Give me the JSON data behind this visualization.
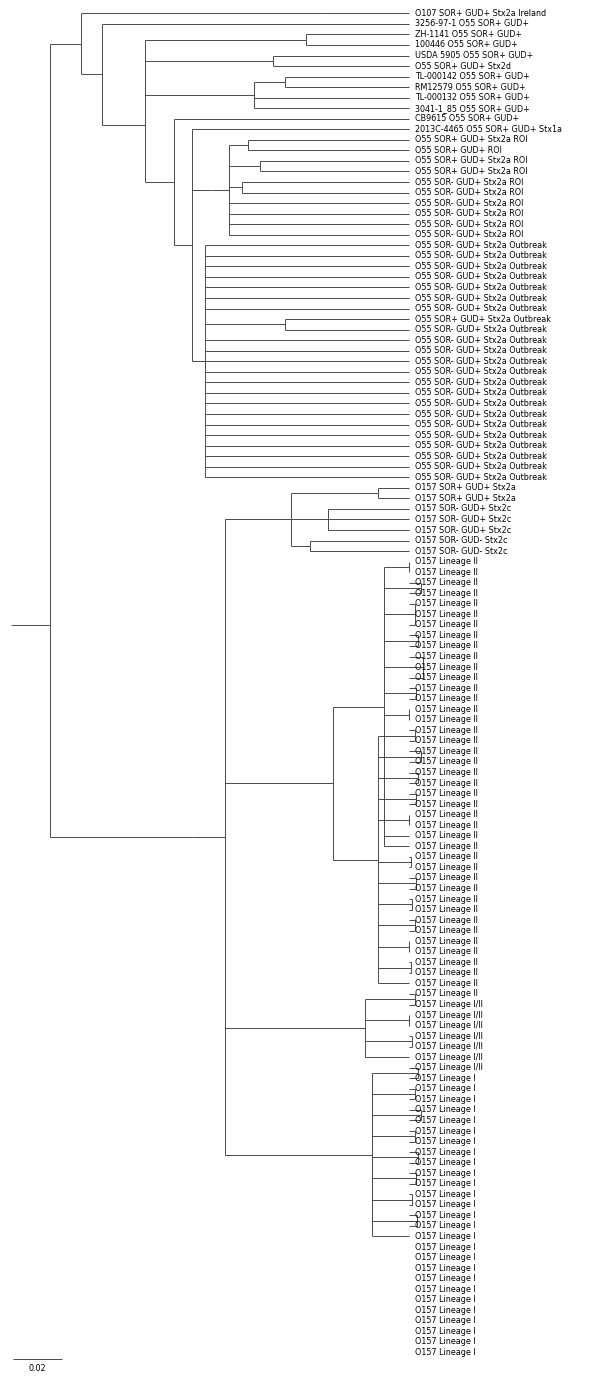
{
  "figsize": [
    6.0,
    13.78
  ],
  "dpi": 100,
  "background_color": "#ffffff",
  "line_color": "#4a4a4a",
  "text_color": "#000000",
  "font_size": 5.8,
  "scale_bar_label": "0.02",
  "leaves": [
    "O107 SOR+ GUD+ Stx2a Ireland",
    "3256-97-1 O55 SOR+ GUD+",
    "ZH-1141 O55 SOR+ GUD+",
    "100446 O55 SOR+ GUD+",
    "USDA 5905 O55 SOR+ GUD+",
    "O55 SOR+ GUD+ Stx2d",
    "TL-000142 O55 SOR+ GUD+",
    "RM12579 O55 SOR+ GUD+",
    "TL-000132 O55 SOR+ GUD+",
    "3041-1_85 O55 SOR+ GUD+",
    "CB9615 O55 SOR+ GUD+",
    "2013C-4465 O55 SOR+ GUD+ Stx1a",
    "O55 SOR+ GUD+ Stx2a ROI",
    "O55 SOR+ GUD+ ROI",
    "O55 SOR+ GUD+ Stx2a ROI",
    "O55 SOR+ GUD+ Stx2a ROI",
    "O55 SOR- GUD+ Stx2a ROI",
    "O55 SOR- GUD+ Stx2a ROI",
    "O55 SOR- GUD+ Stx2a ROI",
    "O55 SOR- GUD+ Stx2a ROI",
    "O55 SOR- GUD+ Stx2a ROI",
    "O55 SOR- GUD+ Stx2a ROI",
    "O55 SOR- GUD+ Stx2a Outbreak",
    "O55 SOR- GUD+ Stx2a Outbreak",
    "O55 SOR- GUD+ Stx2a Outbreak",
    "O55 SOR- GUD+ Stx2a Outbreak",
    "O55 SOR- GUD+ Stx2a Outbreak",
    "O55 SOR- GUD+ Stx2a Outbreak",
    "O55 SOR- GUD+ Stx2a Outbreak",
    "O55 SOR+ GUD+ Stx2a Outbreak",
    "O55 SOR- GUD+ Stx2a Outbreak",
    "O55 SOR- GUD+ Stx2a Outbreak",
    "O55 SOR- GUD+ Stx2a Outbreak",
    "O55 SOR- GUD+ Stx2a Outbreak",
    "O55 SOR- GUD+ Stx2a Outbreak",
    "O55 SOR- GUD+ Stx2a Outbreak",
    "O55 SOR- GUD+ Stx2a Outbreak",
    "O55 SOR- GUD+ Stx2a Outbreak",
    "O55 SOR- GUD+ Stx2a Outbreak",
    "O55 SOR- GUD+ Stx2a Outbreak",
    "O55 SOR- GUD+ Stx2a Outbreak",
    "O55 SOR- GUD+ Stx2a Outbreak",
    "O55 SOR- GUD+ Stx2a Outbreak",
    "O55 SOR- GUD+ Stx2a Outbreak",
    "O55 SOR- GUD+ Stx2a Outbreak",
    "O157 SOR+ GUD+ Stx2a",
    "O157 SOR+ GUD+ Stx2a",
    "O157 SOR- GUD+ Stx2c",
    "O157 SOR- GUD+ Stx2c",
    "O157 SOR- GUD+ Stx2c",
    "O157 SOR- GUD- Stx2c",
    "O157 SOR- GUD- Stx2c",
    "O157 Lineage II",
    "O157 Lineage II",
    "O157 Lineage II",
    "O157 Lineage II",
    "O157 Lineage II",
    "O157 Lineage II",
    "O157 Lineage II",
    "O157 Lineage II",
    "O157 Lineage II",
    "O157 Lineage II",
    "O157 Lineage II",
    "O157 Lineage II",
    "O157 Lineage II",
    "O157 Lineage II",
    "O157 Lineage II",
    "O157 Lineage II",
    "O157 Lineage II",
    "O157 Lineage II",
    "O157 Lineage II",
    "O157 Lineage II",
    "O157 Lineage II",
    "O157 Lineage II",
    "O157 Lineage II",
    "O157 Lineage II",
    "O157 Lineage II",
    "O157 Lineage II",
    "O157 Lineage II",
    "O157 Lineage II",
    "O157 Lineage II",
    "O157 Lineage II",
    "O157 Lineage II",
    "O157 Lineage II",
    "O157 Lineage II",
    "O157 Lineage II",
    "O157 Lineage II",
    "O157 Lineage II",
    "O157 Lineage II",
    "O157 Lineage II",
    "O157 Lineage II",
    "O157 Lineage II",
    "O157 Lineage II",
    "O157 Lineage II",
    "O157 Lineage I/II",
    "O157 Lineage I/II",
    "O157 Lineage I/II",
    "O157 Lineage I/II",
    "O157 Lineage I/II",
    "O157 Lineage I/II",
    "O157 Lineage I/II",
    "O157 Lineage I",
    "O157 Lineage I",
    "O157 Lineage I",
    "O157 Lineage I",
    "O157 Lineage I",
    "O157 Lineage I",
    "O157 Lineage I",
    "O157 Lineage I",
    "O157 Lineage I",
    "O157 Lineage I",
    "O157 Lineage I",
    "O157 Lineage I",
    "O157 Lineage I",
    "O157 Lineage I",
    "O157 Lineage I",
    "O157 Lineage I",
    "O157 Lineage I",
    "O157 Lineage I",
    "O157 Lineage I",
    "O157 Lineage I",
    "O157 Lineage I",
    "O157 Lineage I",
    "O157 Lineage I",
    "O157 Lineage I",
    "O157 Lineage I",
    "O157 Lineage I",
    "O157 Lineage I"
  ]
}
